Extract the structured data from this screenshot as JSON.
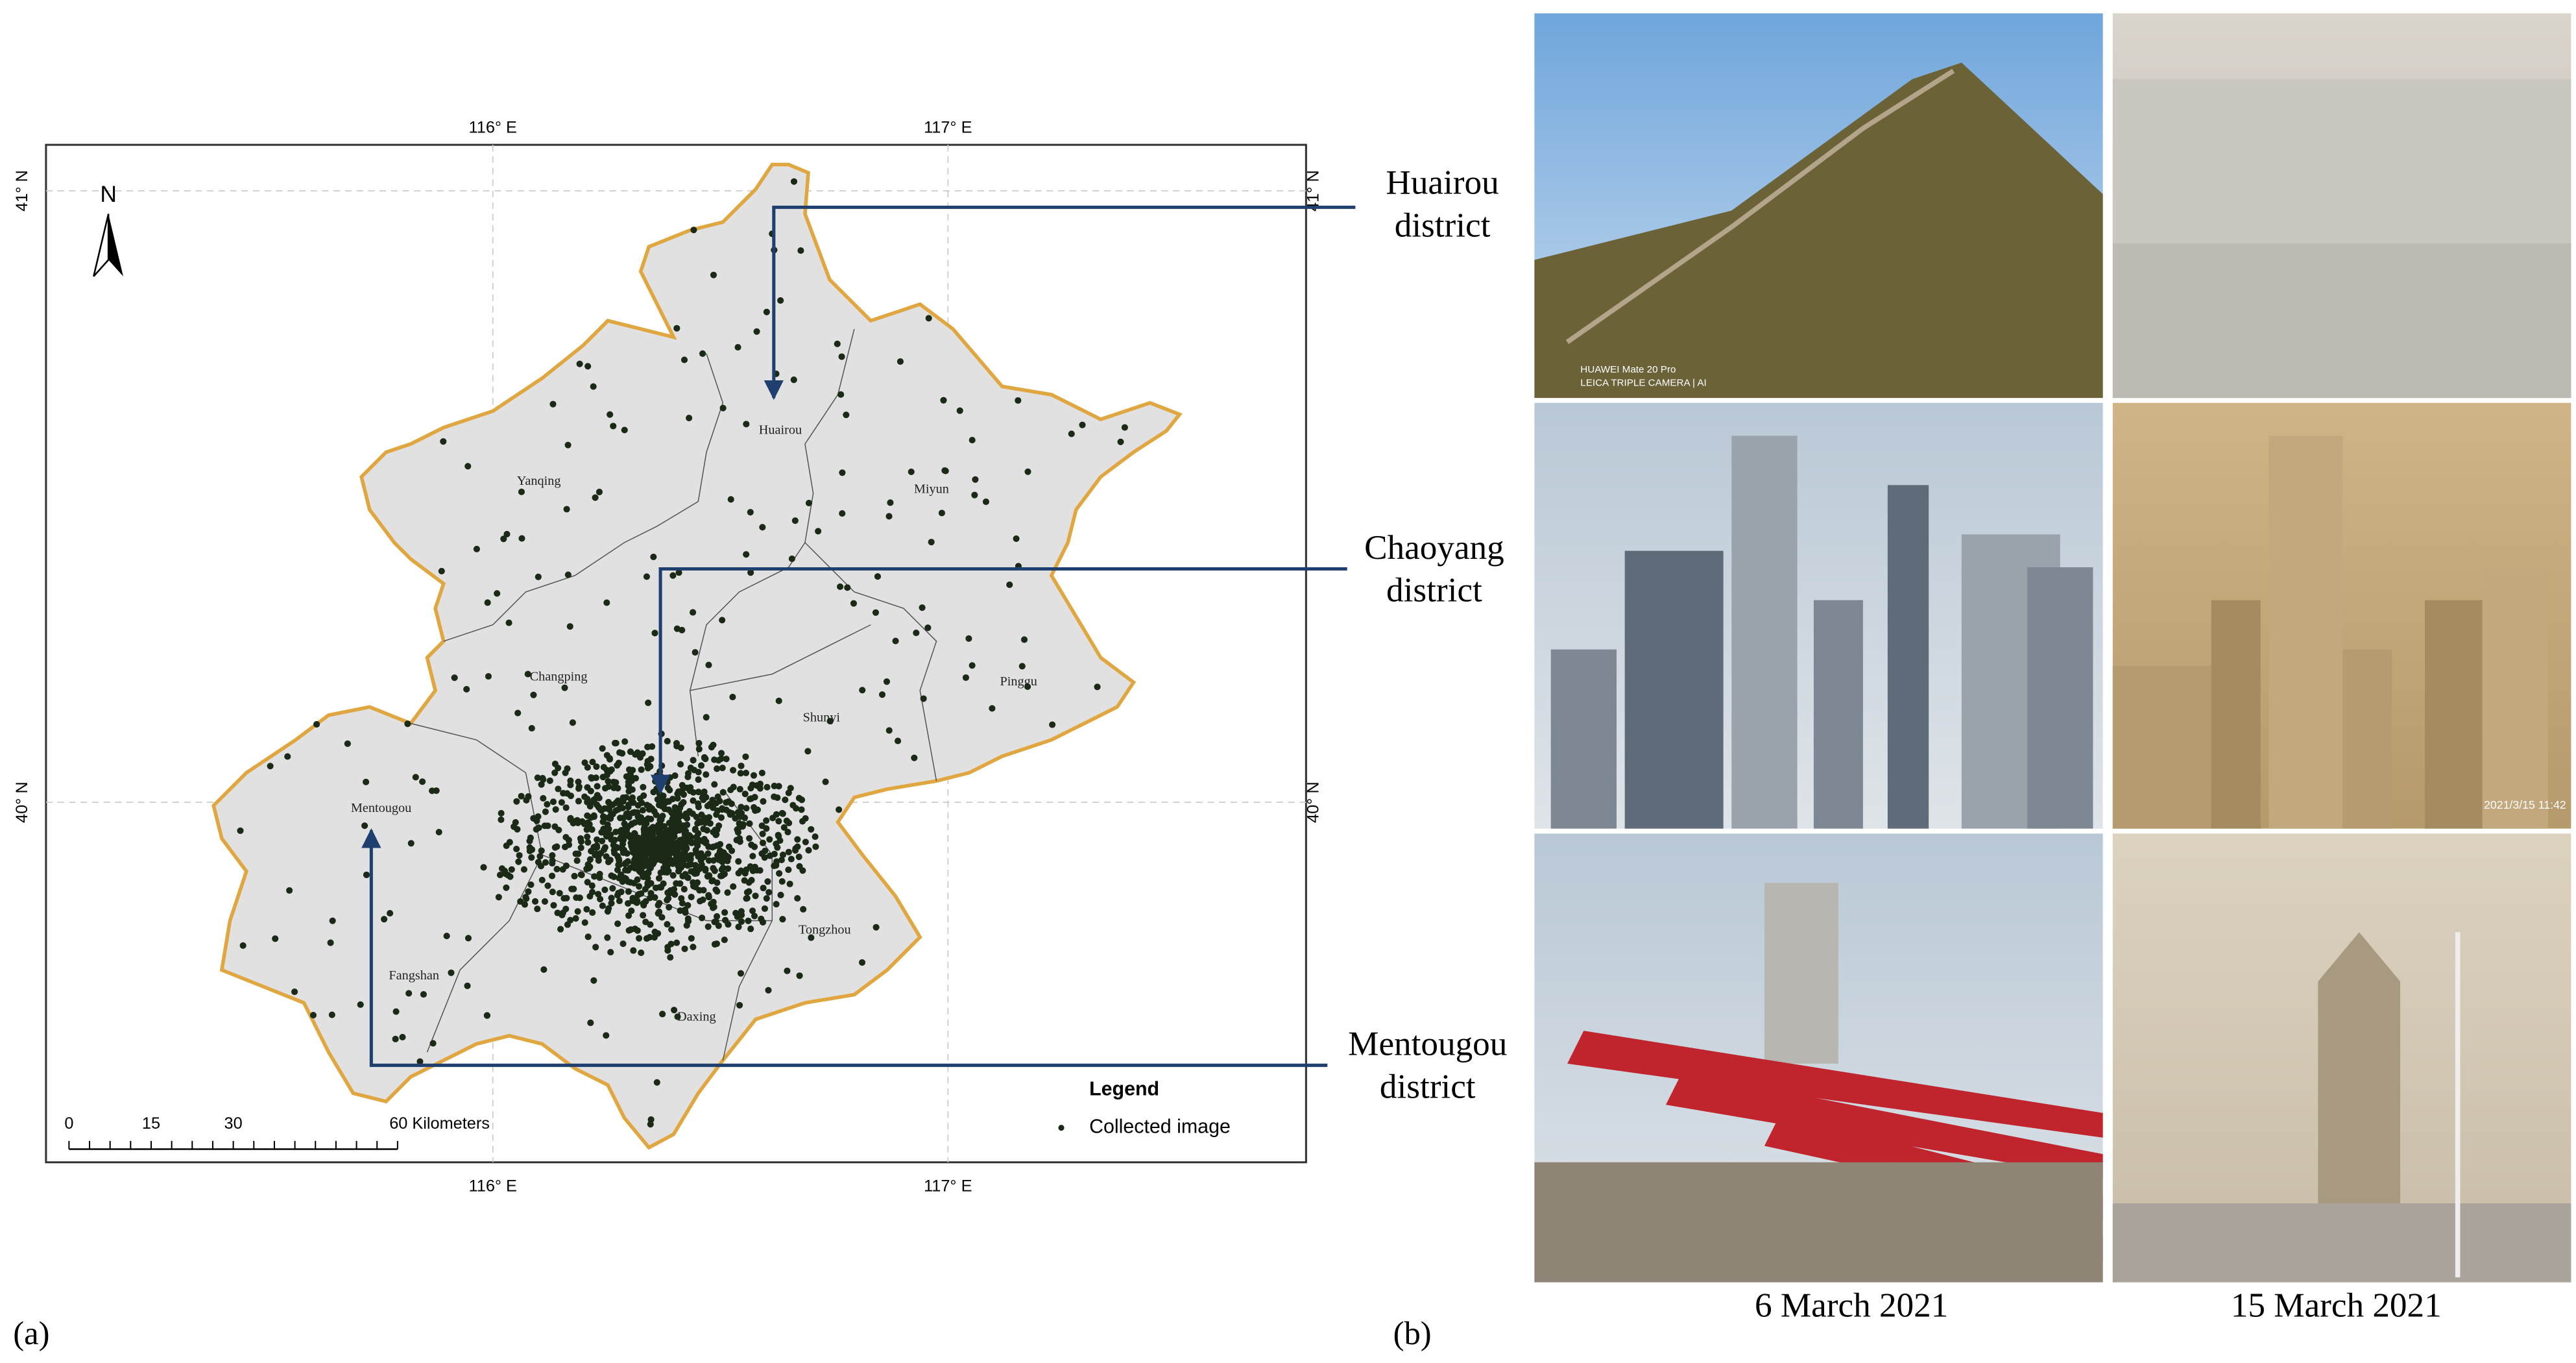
{
  "map": {
    "top_labels": [
      "116° E",
      "117° E"
    ],
    "bottom_labels": [
      "116° E",
      "117° E"
    ],
    "left_labels": [
      "41° N",
      "40° N"
    ],
    "right_labels": [
      "41° N",
      "40° N"
    ],
    "north": "N",
    "districts": [
      "Huairou",
      "Yanqing",
      "Miyun",
      "Changping",
      "Shunyi",
      "Pinggu",
      "Mentougou",
      "Tongzhou",
      "Fangshan",
      "Daxing"
    ],
    "scale_bar": [
      "0",
      "15",
      "30",
      "60 Kilometers"
    ],
    "legend": {
      "title": "Legend",
      "item": "Collected image"
    },
    "panel_label": "(a)"
  },
  "photos": {
    "callouts": [
      [
        "Huairou",
        "district"
      ],
      [
        "Chaoyang",
        "district"
      ],
      [
        "Mentougou",
        "district"
      ]
    ],
    "captions": [
      "6 March 2021",
      "15 March 2021"
    ],
    "watermark": [
      "HUAWEI Mate 20 Pro",
      "LEICA TRIPLE CAMERA | AI"
    ],
    "timestamp": "2021/3/15 11:42",
    "panel_label": "(b)"
  }
}
